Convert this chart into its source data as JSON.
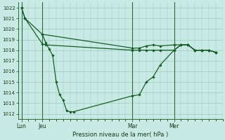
{
  "title": "Pression niveau de la mer( hPa )",
  "bg_color": "#c8eae4",
  "grid_color": "#a0ccbf",
  "line_color": "#1a5c2a",
  "ylim": [
    1011.5,
    1022.5
  ],
  "yticks": [
    1012,
    1013,
    1014,
    1015,
    1016,
    1017,
    1018,
    1019,
    1020,
    1021,
    1022
  ],
  "xlabels": [
    "Lun",
    "Jeu",
    "Mar",
    "Mer"
  ],
  "xtick_pos": [
    0,
    3,
    16,
    22
  ],
  "line1_x": [
    0,
    0.5,
    3,
    16,
    17,
    18,
    19,
    20,
    22,
    23,
    24,
    25,
    26,
    27,
    28
  ],
  "line1_y": [
    1022,
    1021,
    1019.5,
    1018.2,
    1018.2,
    1018.4,
    1018.5,
    1018.4,
    1018.5,
    1018.5,
    1018.5,
    1018.0,
    1018.0,
    1018.0,
    1017.8
  ],
  "line2_x": [
    3,
    3.5,
    4,
    4.5,
    5,
    5.5,
    6,
    6.5,
    7,
    7.5,
    16,
    17,
    18,
    19,
    20,
    22,
    23,
    24,
    25,
    26,
    27,
    28
  ],
  "line2_y": [
    1019.5,
    1018.7,
    1018.1,
    1017.5,
    1015.0,
    1013.8,
    1013.3,
    1012.3,
    1012.2,
    1012.2,
    1013.7,
    1013.8,
    1015.0,
    1015.5,
    1016.6,
    1018.0,
    1018.5,
    1018.5,
    1018.0,
    1018.0,
    1018.0,
    1017.8
  ],
  "line3_x": [
    0,
    0.5,
    3,
    3.5,
    16,
    17,
    18,
    19,
    20,
    22,
    23,
    24,
    25,
    26,
    27,
    28
  ],
  "line3_y": [
    1022,
    1021,
    1018.6,
    1018.5,
    1018.0,
    1018.0,
    1018.0,
    1018.0,
    1018.0,
    1018.0,
    1018.5,
    1018.5,
    1018.0,
    1018.0,
    1018.0,
    1017.8
  ]
}
